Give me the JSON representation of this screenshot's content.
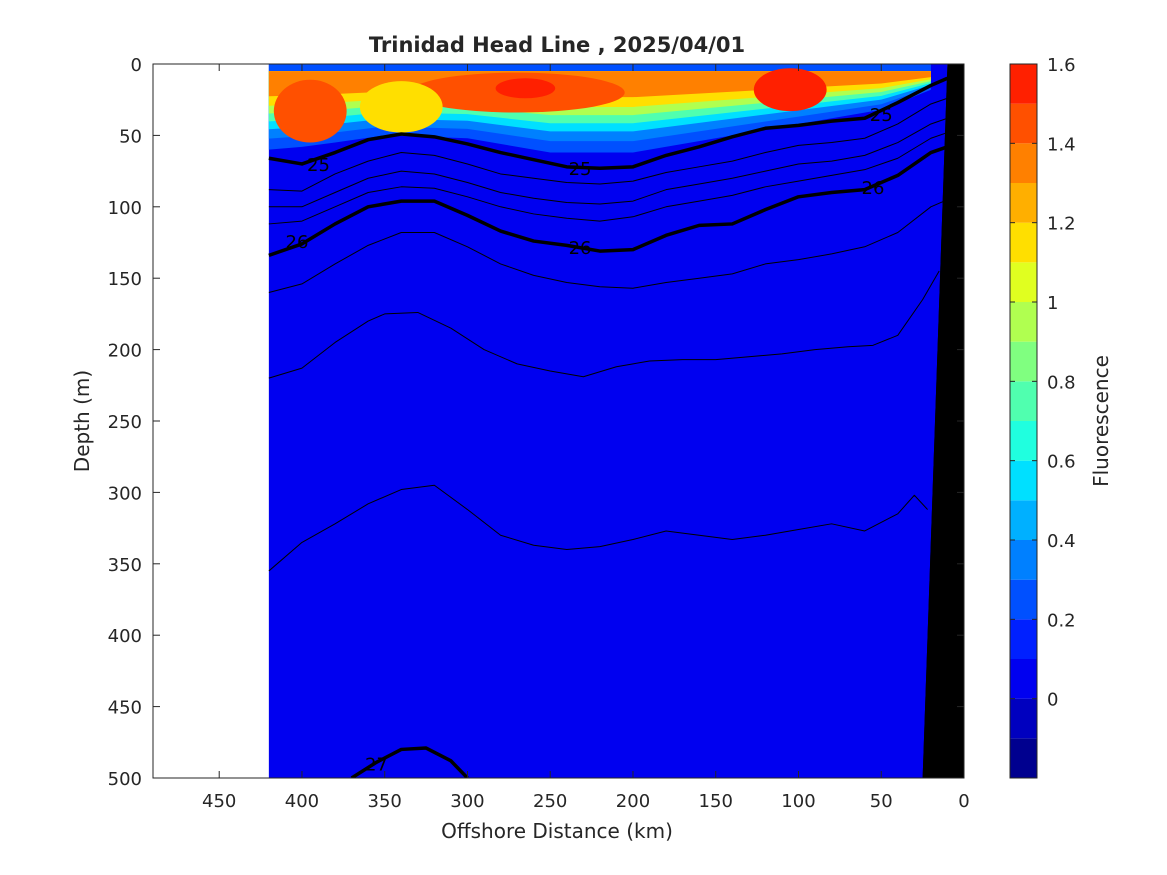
{
  "chart_data": {
    "type": "contour",
    "title": "Trinidad Head Line , 2025/04/01",
    "xlabel": "Offshore Distance (km)",
    "ylabel": "Depth (m)",
    "xlim": [
      490,
      0
    ],
    "ylim": [
      0,
      500
    ],
    "x_reversed": true,
    "y_reversed": true,
    "xticks": [
      450,
      400,
      350,
      300,
      250,
      200,
      150,
      100,
      50,
      0
    ],
    "yticks": [
      0,
      50,
      100,
      150,
      200,
      250,
      300,
      350,
      400,
      450,
      500
    ],
    "data_extent_x": [
      420,
      10
    ],
    "fill_variable": {
      "name": "Fluorescence",
      "colorbar_ticks": [
        "1.6",
        "1.4",
        "1.2",
        "1",
        "0.8",
        "0.6",
        "0.4",
        "0.2",
        "0"
      ],
      "colorbar_range": [
        -0.2,
        1.6
      ],
      "levels": [
        -0.2,
        -0.1,
        0,
        0.1,
        0.2,
        0.3,
        0.4,
        0.5,
        0.6,
        0.7,
        0.8,
        0.9,
        1.0,
        1.1,
        1.2,
        1.3,
        1.4,
        1.5,
        1.6
      ],
      "colors": [
        "#00008f",
        "#0000bf",
        "#0000f0",
        "#0020ff",
        "#0050ff",
        "#0080ff",
        "#00b0ff",
        "#00e0ff",
        "#20ffdf",
        "#50ffaf",
        "#80ff80",
        "#b0ff50",
        "#e0ff20",
        "#ffdf00",
        "#ffaf00",
        "#ff8000",
        "#ff5000",
        "#ff2000",
        "#bf0000"
      ],
      "high_band": [
        {
          "x": 420,
          "top": 5,
          "bottom": 60
        },
        {
          "x": 400,
          "top": 5,
          "bottom": 58
        },
        {
          "x": 380,
          "top": 5,
          "bottom": 55
        },
        {
          "x": 350,
          "top": 5,
          "bottom": 50
        },
        {
          "x": 300,
          "top": 5,
          "bottom": 52
        },
        {
          "x": 250,
          "top": 5,
          "bottom": 62
        },
        {
          "x": 200,
          "top": 5,
          "bottom": 62
        },
        {
          "x": 150,
          "top": 5,
          "bottom": 52
        },
        {
          "x": 100,
          "top": 5,
          "bottom": 42
        },
        {
          "x": 50,
          "top": 5,
          "bottom": 32
        },
        {
          "x": 20,
          "top": 5,
          "bottom": 18
        }
      ],
      "patches": [
        {
          "x": 395,
          "y": 33,
          "rx": 22,
          "ry": 22,
          "value": 1.45
        },
        {
          "x": 270,
          "y": 20,
          "rx": 65,
          "ry": 14,
          "value": 1.4
        },
        {
          "x": 265,
          "y": 17,
          "rx": 18,
          "ry": 7,
          "value": 1.55
        },
        {
          "x": 105,
          "y": 18,
          "rx": 22,
          "ry": 15,
          "value": 1.5
        },
        {
          "x": 340,
          "y": 30,
          "rx": 25,
          "ry": 18,
          "value": 1.15
        }
      ]
    },
    "density_contours": [
      {
        "level": "25",
        "bold": true,
        "labels": [
          {
            "x": 390,
            "y": 70
          },
          {
            "x": 232,
            "y": 73
          },
          {
            "x": 50,
            "y": 35
          }
        ],
        "points": [
          [
            420,
            66
          ],
          [
            400,
            70
          ],
          [
            380,
            62
          ],
          [
            360,
            53
          ],
          [
            340,
            49
          ],
          [
            320,
            51
          ],
          [
            300,
            56
          ],
          [
            280,
            62
          ],
          [
            260,
            67
          ],
          [
            240,
            72
          ],
          [
            220,
            73
          ],
          [
            200,
            72
          ],
          [
            180,
            64
          ],
          [
            160,
            58
          ],
          [
            140,
            51
          ],
          [
            120,
            45
          ],
          [
            100,
            43
          ],
          [
            80,
            40
          ],
          [
            60,
            38
          ],
          [
            40,
            27
          ],
          [
            20,
            15
          ],
          [
            10,
            10
          ]
        ]
      },
      {
        "level": "26",
        "bold": true,
        "labels": [
          {
            "x": 403,
            "y": 124
          },
          {
            "x": 232,
            "y": 128
          },
          {
            "x": 55,
            "y": 86
          }
        ],
        "points": [
          [
            420,
            134
          ],
          [
            400,
            126
          ],
          [
            380,
            112
          ],
          [
            360,
            100
          ],
          [
            340,
            96
          ],
          [
            320,
            96
          ],
          [
            300,
            106
          ],
          [
            280,
            117
          ],
          [
            260,
            124
          ],
          [
            240,
            127
          ],
          [
            220,
            131
          ],
          [
            200,
            130
          ],
          [
            180,
            120
          ],
          [
            160,
            113
          ],
          [
            140,
            112
          ],
          [
            120,
            102
          ],
          [
            100,
            93
          ],
          [
            80,
            90
          ],
          [
            60,
            88
          ],
          [
            40,
            78
          ],
          [
            20,
            62
          ],
          [
            10,
            58
          ]
        ]
      },
      {
        "level": "27",
        "bold": true,
        "labels": [
          {
            "x": 355,
            "y": 490
          }
        ],
        "points": [
          [
            370,
            500
          ],
          [
            355,
            489
          ],
          [
            340,
            480
          ],
          [
            325,
            479
          ],
          [
            310,
            488
          ],
          [
            300,
            500
          ]
        ]
      },
      {
        "level": "",
        "bold": false,
        "labels": [],
        "points": [
          [
            420,
            88
          ],
          [
            400,
            89
          ],
          [
            380,
            77
          ],
          [
            360,
            68
          ],
          [
            340,
            62
          ],
          [
            320,
            64
          ],
          [
            300,
            70
          ],
          [
            280,
            77
          ],
          [
            260,
            80
          ],
          [
            240,
            83
          ],
          [
            220,
            84
          ],
          [
            200,
            82
          ],
          [
            180,
            76
          ],
          [
            160,
            72
          ],
          [
            140,
            68
          ],
          [
            120,
            62
          ],
          [
            100,
            57
          ],
          [
            80,
            55
          ],
          [
            60,
            52
          ],
          [
            40,
            42
          ],
          [
            20,
            28
          ],
          [
            10,
            24
          ]
        ]
      },
      {
        "level": "",
        "bold": false,
        "labels": [],
        "points": [
          [
            420,
            100
          ],
          [
            400,
            100
          ],
          [
            380,
            90
          ],
          [
            360,
            80
          ],
          [
            340,
            75
          ],
          [
            320,
            77
          ],
          [
            300,
            83
          ],
          [
            280,
            90
          ],
          [
            260,
            94
          ],
          [
            240,
            97
          ],
          [
            220,
            98
          ],
          [
            200,
            96
          ],
          [
            180,
            88
          ],
          [
            160,
            84
          ],
          [
            140,
            80
          ],
          [
            120,
            75
          ],
          [
            100,
            70
          ],
          [
            80,
            68
          ],
          [
            60,
            64
          ],
          [
            40,
            55
          ],
          [
            20,
            42
          ],
          [
            10,
            38
          ]
        ]
      },
      {
        "level": "",
        "bold": false,
        "labels": [],
        "points": [
          [
            420,
            112
          ],
          [
            400,
            110
          ],
          [
            380,
            100
          ],
          [
            360,
            90
          ],
          [
            340,
            86
          ],
          [
            320,
            87
          ],
          [
            300,
            93
          ],
          [
            280,
            100
          ],
          [
            260,
            105
          ],
          [
            240,
            108
          ],
          [
            220,
            110
          ],
          [
            200,
            107
          ],
          [
            180,
            100
          ],
          [
            160,
            96
          ],
          [
            140,
            92
          ],
          [
            120,
            86
          ],
          [
            100,
            82
          ],
          [
            80,
            78
          ],
          [
            60,
            74
          ],
          [
            40,
            66
          ],
          [
            20,
            52
          ],
          [
            10,
            48
          ]
        ]
      },
      {
        "level": "",
        "bold": false,
        "labels": [],
        "points": [
          [
            420,
            160
          ],
          [
            400,
            154
          ],
          [
            380,
            140
          ],
          [
            360,
            127
          ],
          [
            340,
            118
          ],
          [
            320,
            118
          ],
          [
            300,
            128
          ],
          [
            280,
            140
          ],
          [
            260,
            148
          ],
          [
            240,
            153
          ],
          [
            220,
            156
          ],
          [
            200,
            157
          ],
          [
            180,
            153
          ],
          [
            160,
            150
          ],
          [
            140,
            147
          ],
          [
            120,
            140
          ],
          [
            100,
            137
          ],
          [
            80,
            133
          ],
          [
            60,
            128
          ],
          [
            40,
            118
          ],
          [
            20,
            100
          ],
          [
            10,
            95
          ]
        ]
      },
      {
        "level": "",
        "bold": false,
        "labels": [],
        "points": [
          [
            420,
            220
          ],
          [
            400,
            213
          ],
          [
            380,
            195
          ],
          [
            360,
            180
          ],
          [
            350,
            175
          ],
          [
            330,
            174
          ],
          [
            310,
            185
          ],
          [
            290,
            200
          ],
          [
            270,
            210
          ],
          [
            250,
            215
          ],
          [
            230,
            219
          ],
          [
            210,
            212
          ],
          [
            190,
            208
          ],
          [
            170,
            207
          ],
          [
            150,
            207
          ],
          [
            130,
            205
          ],
          [
            110,
            203
          ],
          [
            90,
            200
          ],
          [
            70,
            198
          ],
          [
            55,
            197
          ],
          [
            40,
            190
          ],
          [
            25,
            165
          ],
          [
            15,
            145
          ]
        ]
      },
      {
        "level": "",
        "bold": false,
        "labels": [],
        "points": [
          [
            420,
            355
          ],
          [
            400,
            335
          ],
          [
            380,
            322
          ],
          [
            360,
            308
          ],
          [
            340,
            298
          ],
          [
            320,
            295
          ],
          [
            300,
            312
          ],
          [
            280,
            330
          ],
          [
            260,
            337
          ],
          [
            240,
            340
          ],
          [
            220,
            338
          ],
          [
            200,
            333
          ],
          [
            180,
            327
          ],
          [
            160,
            330
          ],
          [
            140,
            333
          ],
          [
            120,
            330
          ],
          [
            100,
            326
          ],
          [
            80,
            322
          ],
          [
            60,
            327
          ],
          [
            40,
            315
          ],
          [
            30,
            302
          ],
          [
            22,
            312
          ]
        ]
      }
    ],
    "bathymetry": {
      "fill": "#000000",
      "points": [
        [
          10,
          0
        ],
        [
          10,
          500
        ],
        [
          25,
          500
        ],
        [
          10,
          0
        ]
      ]
    },
    "colors": {
      "axis": "#262626",
      "background": "#ffffff",
      "bathymetry": "#000000"
    }
  }
}
